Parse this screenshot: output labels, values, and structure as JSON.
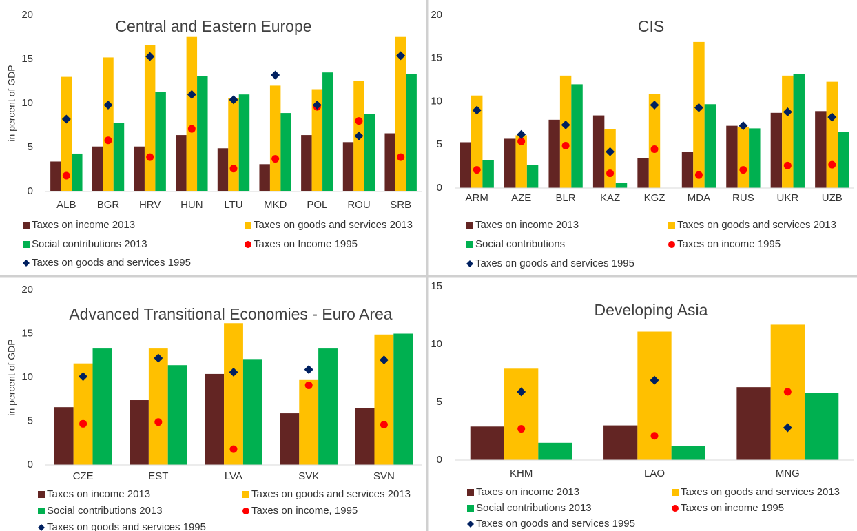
{
  "chart_data": [
    {
      "type": "bar",
      "title": "Central and Eastern Europe",
      "y_label": "in percent of GDP",
      "categories": [
        "ALB",
        "BGR",
        "HRV",
        "HUN",
        "LTU",
        "MKD",
        "POL",
        "ROU",
        "SRB"
      ],
      "ylim": [
        0,
        20
      ],
      "yticks": [
        0,
        5,
        10,
        15,
        20
      ],
      "series": [
        {
          "name": "Taxes on income 2013",
          "color": "#632523",
          "mark": "bar",
          "values": [
            3.4,
            5.1,
            5.1,
            6.4,
            4.9,
            3.1,
            6.4,
            5.6,
            6.6
          ]
        },
        {
          "name": "Taxes on goods and services 2013",
          "color": "#FFC000",
          "mark": "bar",
          "values": [
            13.0,
            15.2,
            16.6,
            17.6,
            10.6,
            12.0,
            11.6,
            12.5,
            17.6
          ]
        },
        {
          "name": "Social contributions 2013",
          "color": "#00B050",
          "mark": "bar",
          "values": [
            4.3,
            7.8,
            11.3,
            13.1,
            11.0,
            8.9,
            13.5,
            8.8,
            13.3
          ]
        },
        {
          "name": "Taxes on Income 1995",
          "color": "#FF0000",
          "mark": "circle",
          "values": [
            1.8,
            5.8,
            3.9,
            7.1,
            2.6,
            3.7,
            9.6,
            8.0,
            3.9
          ]
        },
        {
          "name": "Taxes on goods and services 1995",
          "color": "#002060",
          "mark": "diamond",
          "values": [
            8.2,
            9.8,
            15.3,
            11.0,
            10.4,
            13.2,
            9.8,
            6.3,
            15.4
          ]
        }
      ]
    },
    {
      "type": "bar",
      "title": "CIS",
      "categories": [
        "ARM",
        "AZE",
        "BLR",
        "KAZ",
        "KGZ",
        "MDA",
        "RUS",
        "UKR",
        "UZB"
      ],
      "ylim": [
        0,
        20
      ],
      "yticks": [
        0,
        5,
        10,
        15,
        20
      ],
      "series": [
        {
          "name": "Taxes on income 2013",
          "color": "#632523",
          "mark": "bar",
          "values": [
            5.3,
            5.7,
            7.9,
            8.4,
            3.5,
            4.2,
            7.2,
            8.7,
            8.9
          ]
        },
        {
          "name": "Taxes on goods and services 2013",
          "color": "#FFC000",
          "mark": "bar",
          "values": [
            10.7,
            6.1,
            13.0,
            6.8,
            10.9,
            16.9,
            7.1,
            13.0,
            12.3
          ]
        },
        {
          "name": "Social contributions",
          "color": "#00B050",
          "mark": "bar",
          "values": [
            3.2,
            2.7,
            12.0,
            0.6,
            null,
            9.7,
            6.9,
            13.2,
            6.5
          ]
        },
        {
          "name": "Taxes on income 1995",
          "color": "#FF0000",
          "mark": "circle",
          "values": [
            2.1,
            5.4,
            4.9,
            1.7,
            4.5,
            1.5,
            2.1,
            2.6,
            2.7
          ]
        },
        {
          "name": "Taxes on goods and services 1995",
          "color": "#002060",
          "mark": "diamond",
          "values": [
            9.0,
            6.2,
            7.3,
            4.2,
            9.6,
            9.3,
            7.2,
            8.8,
            8.2
          ]
        }
      ]
    },
    {
      "type": "bar",
      "title": "Advanced Transitional Economies - Euro Area",
      "y_label": "in percent of GDP",
      "categories": [
        "CZE",
        "EST",
        "LVA",
        "SVK",
        "SVN"
      ],
      "ylim": [
        0,
        20
      ],
      "yticks": [
        0,
        5,
        10,
        15,
        20
      ],
      "series": [
        {
          "name": "Taxes on income 2013",
          "color": "#632523",
          "mark": "bar",
          "values": [
            6.6,
            7.4,
            10.4,
            5.9,
            6.5
          ]
        },
        {
          "name": "Taxes on goods and services 2013",
          "color": "#FFC000",
          "mark": "bar",
          "values": [
            11.6,
            13.3,
            16.2,
            9.7,
            14.9
          ]
        },
        {
          "name": "Social contributions 2013",
          "color": "#00B050",
          "mark": "bar",
          "values": [
            13.3,
            11.4,
            12.1,
            13.3,
            15.0
          ]
        },
        {
          "name": "Taxes on income, 1995",
          "color": "#FF0000",
          "mark": "circle",
          "values": [
            4.7,
            4.9,
            1.8,
            9.1,
            4.6
          ]
        },
        {
          "name": "Taxes on goods and services 1995",
          "color": "#002060",
          "mark": "diamond",
          "values": [
            10.1,
            12.2,
            10.6,
            10.9,
            12.0
          ]
        }
      ]
    },
    {
      "type": "bar",
      "title": "Developing Asia",
      "categories": [
        "KHM",
        "LAO",
        "MNG"
      ],
      "ylim": [
        0,
        15
      ],
      "yticks": [
        0,
        5,
        10,
        15
      ],
      "series": [
        {
          "name": "Taxes on income 2013",
          "color": "#632523",
          "mark": "bar",
          "values": [
            2.9,
            3.0,
            6.3
          ]
        },
        {
          "name": "Taxes on goods and services 2013",
          "color": "#FFC000",
          "mark": "bar",
          "values": [
            7.9,
            11.1,
            11.7
          ]
        },
        {
          "name": "Social contributions 2013",
          "color": "#00B050",
          "mark": "bar",
          "values": [
            1.5,
            1.2,
            5.8
          ]
        },
        {
          "name": "Taxes on income 1995",
          "color": "#FF0000",
          "mark": "circle",
          "values": [
            2.7,
            2.1,
            5.9
          ]
        },
        {
          "name": "Taxes on goods and services 1995",
          "color": "#002060",
          "mark": "diamond",
          "values": [
            5.9,
            6.9,
            2.8
          ]
        }
      ]
    }
  ]
}
